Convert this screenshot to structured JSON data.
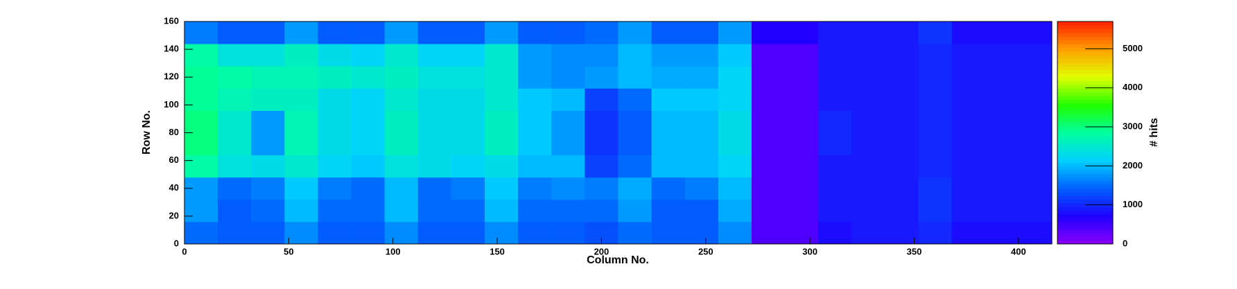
{
  "chart_data": {
    "type": "heatmap",
    "x_label": "Column No.",
    "y_label": "Row No.",
    "z_label": "# hits",
    "xbins": [
      0,
      16,
      32,
      48,
      64,
      80,
      96,
      112,
      128,
      144,
      160,
      176,
      192,
      208,
      224,
      240,
      256,
      272,
      288,
      304,
      320,
      336,
      352,
      368,
      384,
      400,
      416
    ],
    "ybins": [
      0,
      16,
      32,
      48,
      64,
      80,
      96,
      112,
      128,
      144,
      160
    ],
    "z": [
      [
        1500,
        1400,
        1400,
        1700,
        1400,
        1400,
        1700,
        1400,
        1400,
        1700,
        1400,
        1400,
        1300,
        1500,
        1400,
        1400,
        1700,
        400,
        400,
        800,
        900,
        900,
        1000,
        800,
        800,
        800
      ],
      [
        1800,
        1400,
        1500,
        2000,
        1500,
        1500,
        2000,
        1500,
        1500,
        2000,
        1500,
        1500,
        1500,
        1800,
        1400,
        1400,
        1900,
        400,
        400,
        900,
        900,
        900,
        1100,
        900,
        900,
        900
      ],
      [
        1800,
        1500,
        1600,
        2100,
        1600,
        1500,
        2000,
        1500,
        1600,
        2100,
        1600,
        1700,
        1600,
        1900,
        1500,
        1600,
        2000,
        400,
        400,
        900,
        900,
        900,
        1100,
        900,
        900,
        900
      ],
      [
        2800,
        2400,
        2300,
        2500,
        2200,
        2100,
        2400,
        2300,
        2200,
        2300,
        2000,
        2000,
        1200,
        1500,
        2000,
        2000,
        2200,
        400,
        400,
        900,
        900,
        900,
        1000,
        900,
        900,
        900
      ],
      [
        3000,
        2500,
        1800,
        2700,
        2300,
        2200,
        2600,
        2300,
        2300,
        2600,
        2100,
        1800,
        1100,
        1400,
        2000,
        2000,
        2300,
        400,
        400,
        1000,
        900,
        900,
        1000,
        900,
        900,
        900
      ],
      [
        3000,
        2500,
        1800,
        2700,
        2300,
        2200,
        2600,
        2300,
        2300,
        2600,
        2100,
        1800,
        1100,
        1400,
        2000,
        2000,
        2300,
        400,
        400,
        1000,
        900,
        900,
        1000,
        900,
        900,
        900
      ],
      [
        2900,
        2700,
        2600,
        2600,
        2300,
        2200,
        2500,
        2300,
        2300,
        2500,
        2100,
        2000,
        1200,
        1500,
        2100,
        2100,
        2200,
        400,
        400,
        900,
        900,
        900,
        1000,
        900,
        900,
        900
      ],
      [
        2900,
        2800,
        2700,
        2700,
        2600,
        2500,
        2600,
        2400,
        2400,
        2500,
        1800,
        1700,
        1800,
        2000,
        1900,
        1900,
        2200,
        400,
        400,
        900,
        900,
        900,
        1000,
        900,
        900,
        900
      ],
      [
        2800,
        2400,
        2400,
        2600,
        2300,
        2200,
        2500,
        2200,
        2200,
        2500,
        1800,
        1700,
        1700,
        2000,
        1800,
        1800,
        2100,
        400,
        400,
        900,
        900,
        900,
        1000,
        900,
        900,
        900
      ],
      [
        1600,
        1400,
        1400,
        1800,
        1400,
        1400,
        1800,
        1400,
        1400,
        1800,
        1400,
        1400,
        1500,
        1800,
        1400,
        1400,
        1800,
        700,
        700,
        900,
        900,
        900,
        1100,
        800,
        800,
        800
      ]
    ],
    "xlim": [
      0,
      416
    ],
    "xticks": [
      0,
      50,
      100,
      150,
      200,
      250,
      300,
      350,
      400
    ],
    "ylim": [
      0,
      160
    ],
    "yticks": [
      0,
      20,
      40,
      60,
      80,
      100,
      120,
      140,
      160
    ],
    "zlim": [
      0,
      5700
    ],
    "zticks": [
      0,
      1000,
      2000,
      3000,
      4000,
      5000
    ],
    "colorscale": [
      "#8a00ff",
      "#2000ff",
      "#0060ff",
      "#00d0ff",
      "#00ffa0",
      "#20ff00",
      "#e0ff00",
      "#ffa000",
      "#ff2000"
    ]
  }
}
